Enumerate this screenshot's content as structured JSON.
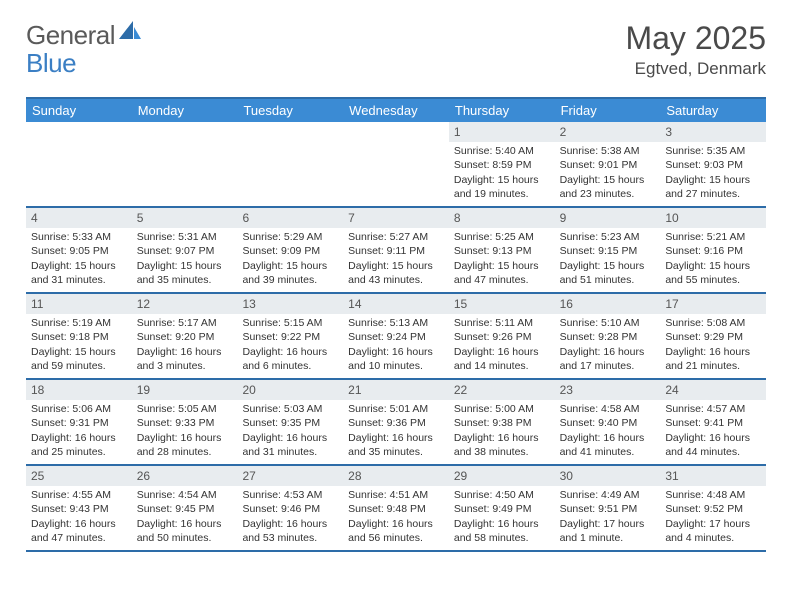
{
  "logo": {
    "general": "General",
    "blue": "Blue"
  },
  "title": "May 2025",
  "location": "Egtved, Denmark",
  "colors": {
    "header_bar": "#3b8bd4",
    "border": "#2d6ca8",
    "daynum_bg": "#e8ecef",
    "text": "#333333",
    "logo_gray": "#5a5a5a",
    "logo_blue": "#3b7fc4"
  },
  "dayNames": [
    "Sunday",
    "Monday",
    "Tuesday",
    "Wednesday",
    "Thursday",
    "Friday",
    "Saturday"
  ],
  "weeks": [
    [
      null,
      null,
      null,
      null,
      {
        "n": "1",
        "sunrise": "Sunrise: 5:40 AM",
        "sunset": "Sunset: 8:59 PM",
        "daylight": "Daylight: 15 hours and 19 minutes."
      },
      {
        "n": "2",
        "sunrise": "Sunrise: 5:38 AM",
        "sunset": "Sunset: 9:01 PM",
        "daylight": "Daylight: 15 hours and 23 minutes."
      },
      {
        "n": "3",
        "sunrise": "Sunrise: 5:35 AM",
        "sunset": "Sunset: 9:03 PM",
        "daylight": "Daylight: 15 hours and 27 minutes."
      }
    ],
    [
      {
        "n": "4",
        "sunrise": "Sunrise: 5:33 AM",
        "sunset": "Sunset: 9:05 PM",
        "daylight": "Daylight: 15 hours and 31 minutes."
      },
      {
        "n": "5",
        "sunrise": "Sunrise: 5:31 AM",
        "sunset": "Sunset: 9:07 PM",
        "daylight": "Daylight: 15 hours and 35 minutes."
      },
      {
        "n": "6",
        "sunrise": "Sunrise: 5:29 AM",
        "sunset": "Sunset: 9:09 PM",
        "daylight": "Daylight: 15 hours and 39 minutes."
      },
      {
        "n": "7",
        "sunrise": "Sunrise: 5:27 AM",
        "sunset": "Sunset: 9:11 PM",
        "daylight": "Daylight: 15 hours and 43 minutes."
      },
      {
        "n": "8",
        "sunrise": "Sunrise: 5:25 AM",
        "sunset": "Sunset: 9:13 PM",
        "daylight": "Daylight: 15 hours and 47 minutes."
      },
      {
        "n": "9",
        "sunrise": "Sunrise: 5:23 AM",
        "sunset": "Sunset: 9:15 PM",
        "daylight": "Daylight: 15 hours and 51 minutes."
      },
      {
        "n": "10",
        "sunrise": "Sunrise: 5:21 AM",
        "sunset": "Sunset: 9:16 PM",
        "daylight": "Daylight: 15 hours and 55 minutes."
      }
    ],
    [
      {
        "n": "11",
        "sunrise": "Sunrise: 5:19 AM",
        "sunset": "Sunset: 9:18 PM",
        "daylight": "Daylight: 15 hours and 59 minutes."
      },
      {
        "n": "12",
        "sunrise": "Sunrise: 5:17 AM",
        "sunset": "Sunset: 9:20 PM",
        "daylight": "Daylight: 16 hours and 3 minutes."
      },
      {
        "n": "13",
        "sunrise": "Sunrise: 5:15 AM",
        "sunset": "Sunset: 9:22 PM",
        "daylight": "Daylight: 16 hours and 6 minutes."
      },
      {
        "n": "14",
        "sunrise": "Sunrise: 5:13 AM",
        "sunset": "Sunset: 9:24 PM",
        "daylight": "Daylight: 16 hours and 10 minutes."
      },
      {
        "n": "15",
        "sunrise": "Sunrise: 5:11 AM",
        "sunset": "Sunset: 9:26 PM",
        "daylight": "Daylight: 16 hours and 14 minutes."
      },
      {
        "n": "16",
        "sunrise": "Sunrise: 5:10 AM",
        "sunset": "Sunset: 9:28 PM",
        "daylight": "Daylight: 16 hours and 17 minutes."
      },
      {
        "n": "17",
        "sunrise": "Sunrise: 5:08 AM",
        "sunset": "Sunset: 9:29 PM",
        "daylight": "Daylight: 16 hours and 21 minutes."
      }
    ],
    [
      {
        "n": "18",
        "sunrise": "Sunrise: 5:06 AM",
        "sunset": "Sunset: 9:31 PM",
        "daylight": "Daylight: 16 hours and 25 minutes."
      },
      {
        "n": "19",
        "sunrise": "Sunrise: 5:05 AM",
        "sunset": "Sunset: 9:33 PM",
        "daylight": "Daylight: 16 hours and 28 minutes."
      },
      {
        "n": "20",
        "sunrise": "Sunrise: 5:03 AM",
        "sunset": "Sunset: 9:35 PM",
        "daylight": "Daylight: 16 hours and 31 minutes."
      },
      {
        "n": "21",
        "sunrise": "Sunrise: 5:01 AM",
        "sunset": "Sunset: 9:36 PM",
        "daylight": "Daylight: 16 hours and 35 minutes."
      },
      {
        "n": "22",
        "sunrise": "Sunrise: 5:00 AM",
        "sunset": "Sunset: 9:38 PM",
        "daylight": "Daylight: 16 hours and 38 minutes."
      },
      {
        "n": "23",
        "sunrise": "Sunrise: 4:58 AM",
        "sunset": "Sunset: 9:40 PM",
        "daylight": "Daylight: 16 hours and 41 minutes."
      },
      {
        "n": "24",
        "sunrise": "Sunrise: 4:57 AM",
        "sunset": "Sunset: 9:41 PM",
        "daylight": "Daylight: 16 hours and 44 minutes."
      }
    ],
    [
      {
        "n": "25",
        "sunrise": "Sunrise: 4:55 AM",
        "sunset": "Sunset: 9:43 PM",
        "daylight": "Daylight: 16 hours and 47 minutes."
      },
      {
        "n": "26",
        "sunrise": "Sunrise: 4:54 AM",
        "sunset": "Sunset: 9:45 PM",
        "daylight": "Daylight: 16 hours and 50 minutes."
      },
      {
        "n": "27",
        "sunrise": "Sunrise: 4:53 AM",
        "sunset": "Sunset: 9:46 PM",
        "daylight": "Daylight: 16 hours and 53 minutes."
      },
      {
        "n": "28",
        "sunrise": "Sunrise: 4:51 AM",
        "sunset": "Sunset: 9:48 PM",
        "daylight": "Daylight: 16 hours and 56 minutes."
      },
      {
        "n": "29",
        "sunrise": "Sunrise: 4:50 AM",
        "sunset": "Sunset: 9:49 PM",
        "daylight": "Daylight: 16 hours and 58 minutes."
      },
      {
        "n": "30",
        "sunrise": "Sunrise: 4:49 AM",
        "sunset": "Sunset: 9:51 PM",
        "daylight": "Daylight: 17 hours and 1 minute."
      },
      {
        "n": "31",
        "sunrise": "Sunrise: 4:48 AM",
        "sunset": "Sunset: 9:52 PM",
        "daylight": "Daylight: 17 hours and 4 minutes."
      }
    ]
  ]
}
